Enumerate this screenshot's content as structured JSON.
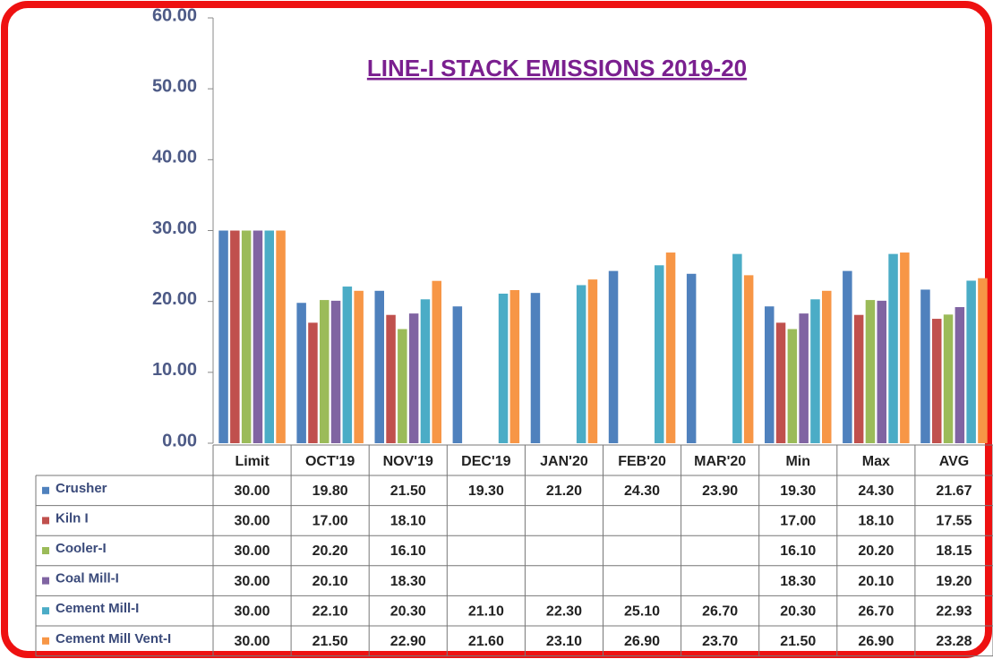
{
  "chart_data": {
    "type": "bar",
    "title": "LINE-I STACK EMISSIONS 2019-20",
    "categories": [
      "Limit",
      "OCT'19",
      "NOV'19",
      "DEC'19",
      "JAN'20",
      "FEB'20",
      "MAR'20",
      "Min",
      "Max",
      "AVG"
    ],
    "series": [
      {
        "name": "Crusher",
        "color": "#4f81bd",
        "values": [
          30,
          19.8,
          21.5,
          19.3,
          21.2,
          24.3,
          23.9,
          19.3,
          24.3,
          21.67
        ],
        "value_labels": [
          "30.00",
          "19.80",
          "21.50",
          "19.30",
          "21.20",
          "24.30",
          "23.90",
          "19.30",
          "24.30",
          "21.67"
        ]
      },
      {
        "name": "Kiln I",
        "color": "#c0504d",
        "values": [
          30,
          17,
          18.1,
          null,
          null,
          null,
          null,
          17,
          18.1,
          17.55
        ],
        "value_labels": [
          "30.00",
          "17.00",
          "18.10",
          null,
          null,
          null,
          null,
          "17.00",
          "18.10",
          "17.55"
        ]
      },
      {
        "name": "Cooler-I",
        "color": "#9bbb59",
        "values": [
          30,
          20.2,
          16.1,
          null,
          null,
          null,
          null,
          16.1,
          20.2,
          18.15
        ],
        "value_labels": [
          "30.00",
          "20.20",
          "16.10",
          null,
          null,
          null,
          null,
          "16.10",
          "20.20",
          "18.15"
        ]
      },
      {
        "name": "Coal Mill-I",
        "color": "#8064a2",
        "values": [
          30,
          20.1,
          18.3,
          null,
          null,
          null,
          null,
          18.3,
          20.1,
          19.2
        ],
        "value_labels": [
          "30.00",
          "20.10",
          "18.30",
          null,
          null,
          null,
          null,
          "18.30",
          "20.10",
          "19.20"
        ]
      },
      {
        "name": "Cement Mill-I",
        "color": "#4bacc6",
        "values": [
          30,
          22.1,
          20.3,
          21.1,
          22.3,
          25.1,
          26.7,
          20.3,
          26.7,
          22.93
        ],
        "value_labels": [
          "30.00",
          "22.10",
          "20.30",
          "21.10",
          "22.30",
          "25.10",
          "26.70",
          "20.30",
          "26.70",
          "22.93"
        ]
      },
      {
        "name": "Cement Mill Vent-I",
        "color": "#f79646",
        "values": [
          30,
          21.5,
          22.9,
          21.6,
          23.1,
          26.9,
          23.7,
          21.5,
          26.9,
          23.28
        ],
        "value_labels": [
          "30.00",
          "21.50",
          "22.90",
          "21.60",
          "23.10",
          "26.90",
          "23.70",
          "21.50",
          "26.90",
          "23.28"
        ]
      }
    ],
    "ylim": [
      0,
      60
    ],
    "yticks": [
      {
        "value": 0,
        "label": "0.00"
      },
      {
        "value": 10,
        "label": "10.00"
      },
      {
        "value": 20,
        "label": "20.00"
      },
      {
        "value": 30,
        "label": "30.00"
      },
      {
        "value": 40,
        "label": "40.00"
      },
      {
        "value": 50,
        "label": "50.00"
      },
      {
        "value": 60,
        "label": "60.00"
      }
    ]
  }
}
